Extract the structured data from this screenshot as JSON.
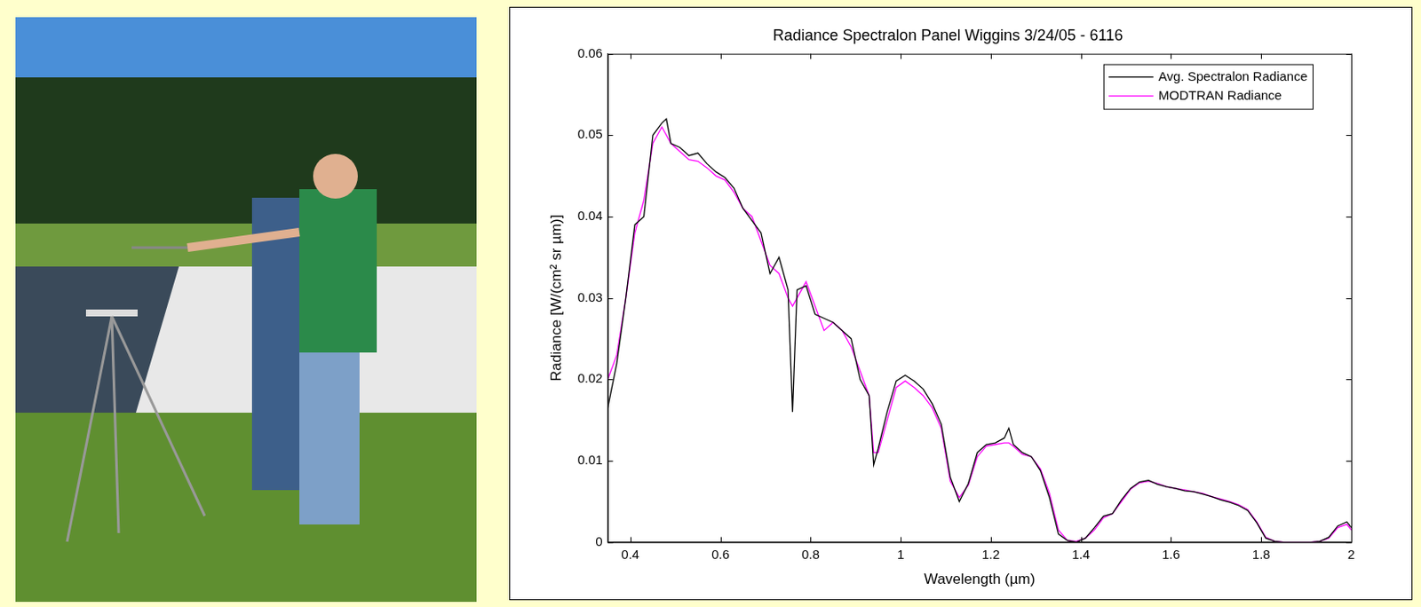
{
  "chart_data": {
    "type": "line",
    "title": "Radiance Spectralon Panel Wiggins 3/24/05 - 6116",
    "x_label": "Wavelength (µm)",
    "y_label": "Radiance [W/(cm² sr µm)]",
    "x": [
      0.35,
      0.37,
      0.39,
      0.41,
      0.43,
      0.45,
      0.47,
      0.48,
      0.49,
      0.51,
      0.53,
      0.55,
      0.57,
      0.59,
      0.61,
      0.63,
      0.65,
      0.67,
      0.69,
      0.71,
      0.73,
      0.75,
      0.76,
      0.77,
      0.79,
      0.81,
      0.83,
      0.85,
      0.87,
      0.89,
      0.91,
      0.93,
      0.94,
      0.95,
      0.97,
      0.99,
      1.01,
      1.03,
      1.05,
      1.07,
      1.09,
      1.11,
      1.13,
      1.15,
      1.17,
      1.19,
      1.21,
      1.23,
      1.24,
      1.25,
      1.27,
      1.29,
      1.31,
      1.33,
      1.35,
      1.37,
      1.39,
      1.41,
      1.43,
      1.45,
      1.47,
      1.49,
      1.51,
      1.53,
      1.55,
      1.57,
      1.59,
      1.61,
      1.63,
      1.65,
      1.67,
      1.69,
      1.71,
      1.73,
      1.75,
      1.77,
      1.79,
      1.81,
      1.83,
      1.85,
      1.87,
      1.89,
      1.91,
      1.93,
      1.95,
      1.97,
      1.99,
      2.0
    ],
    "series": [
      {
        "name": "Avg. Spectralon Radiance",
        "color": "#000000",
        "values": [
          0.0165,
          0.022,
          0.03,
          0.039,
          0.04,
          0.05,
          0.0515,
          0.052,
          0.049,
          0.0485,
          0.0475,
          0.0478,
          0.0465,
          0.0455,
          0.0448,
          0.0435,
          0.041,
          0.0395,
          0.038,
          0.033,
          0.035,
          0.031,
          0.016,
          0.031,
          0.0315,
          0.028,
          0.0275,
          0.027,
          0.026,
          0.025,
          0.02,
          0.018,
          0.0095,
          0.0115,
          0.016,
          0.0198,
          0.0205,
          0.0198,
          0.0188,
          0.017,
          0.0145,
          0.008,
          0.005,
          0.0072,
          0.011,
          0.012,
          0.0122,
          0.0128,
          0.014,
          0.012,
          0.011,
          0.0105,
          0.0088,
          0.0055,
          0.001,
          0.0002,
          0.0,
          0.0005,
          0.0018,
          0.0032,
          0.0035,
          0.0052,
          0.0066,
          0.0074,
          0.0076,
          0.0071,
          0.0068,
          0.0066,
          0.0063,
          0.0062,
          0.0059,
          0.0056,
          0.0052,
          0.0049,
          0.0045,
          0.0039,
          0.0024,
          0.0005,
          0.0001,
          0.0,
          0.0,
          0.0,
          0.0,
          0.0001,
          0.0006,
          0.002,
          0.0025,
          0.0018
        ]
      },
      {
        "name": "MODTRAN Radiance",
        "color": "#ff00ff",
        "values": [
          0.02,
          0.023,
          0.03,
          0.038,
          0.042,
          0.049,
          0.051,
          0.05,
          0.049,
          0.048,
          0.047,
          0.0468,
          0.046,
          0.045,
          0.0445,
          0.043,
          0.041,
          0.04,
          0.037,
          0.034,
          0.033,
          0.03,
          0.029,
          0.03,
          0.032,
          0.029,
          0.026,
          0.027,
          0.026,
          0.024,
          0.021,
          0.018,
          0.011,
          0.011,
          0.015,
          0.019,
          0.0198,
          0.019,
          0.018,
          0.0165,
          0.014,
          0.0075,
          0.0055,
          0.007,
          0.0105,
          0.0118,
          0.012,
          0.0122,
          0.0122,
          0.0118,
          0.0108,
          0.0105,
          0.009,
          0.006,
          0.0015,
          0.0002,
          0.0001,
          0.0005,
          0.0015,
          0.003,
          0.0035,
          0.005,
          0.0065,
          0.0073,
          0.0075,
          0.0072,
          0.0068,
          0.0066,
          0.0064,
          0.0062,
          0.006,
          0.0056,
          0.0053,
          0.005,
          0.0046,
          0.004,
          0.0025,
          0.0006,
          0.0001,
          0.0,
          0.0,
          0.0,
          0.0,
          0.0001,
          0.0005,
          0.0018,
          0.0022,
          0.0015
        ]
      }
    ],
    "xlim": [
      0.35,
      2.0
    ],
    "xticks": [
      0.4,
      0.6,
      0.8,
      1,
      1.2,
      1.4,
      1.6,
      1.8,
      2
    ],
    "ylim": [
      0,
      0.06
    ],
    "yticks": [
      0,
      0.01,
      0.02,
      0.03,
      0.04,
      0.05,
      0.06
    ],
    "grid": false,
    "legend": "upper right"
  }
}
